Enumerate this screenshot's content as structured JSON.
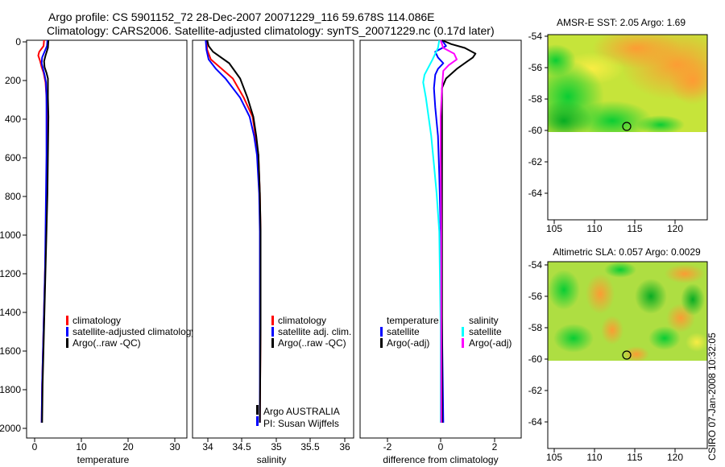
{
  "figure": {
    "title_line1": "Argo profile: CS 5901152_72 28-Dec-2007 20071229_116 59.678S 114.086E",
    "title_line2": "Climatology: CARS2006. Satellite-adjusted climatology: synTS_20071229.nc (0.17d later)",
    "credit": "CSIRO 07-Jan-2008 10:32:05",
    "float_info_1": "Argo AUSTRALIA",
    "float_info_2": "PI: Susan Wijffels"
  },
  "colors": {
    "climatology": "#ff0000",
    "satellite": "#0000ff",
    "argo": "#000000",
    "diff_temp_satellite": "#0000ff",
    "diff_temp_argo": "#000000",
    "diff_sal_satellite": "#00ffff",
    "diff_sal_argo": "#ff00ff",
    "map_marker": "#000000"
  },
  "chart_data": [
    {
      "type": "line",
      "id": "temperature",
      "xlabel": "temperature",
      "ylabel": "",
      "xlim": [
        -2,
        31
      ],
      "ylim": [
        2080,
        0
      ],
      "y_reversed": true,
      "xticks": [
        "0",
        "10",
        "20",
        "30"
      ],
      "yticks": [
        "0",
        "200",
        "400",
        "600",
        "800",
        "1000",
        "1200",
        "1400",
        "1600",
        "1800",
        "2000"
      ],
      "legend": [
        "climatology",
        "satellite-adjusted climatology",
        "Argo(..raw -QC)"
      ],
      "legend_position": "lower-right",
      "series": [
        {
          "name": "climatology",
          "color_key": "climatology",
          "points": [
            [
              1.6,
              0
            ],
            [
              1.5,
              30
            ],
            [
              0.6,
              60
            ],
            [
              0.4,
              80
            ],
            [
              0.8,
              110
            ],
            [
              1.1,
              140
            ],
            [
              1.5,
              170
            ],
            [
              1.9,
              220
            ],
            [
              2.1,
              300
            ],
            [
              2.2,
              400
            ],
            [
              2.2,
              600
            ],
            [
              2.1,
              800
            ],
            [
              2.0,
              1000
            ],
            [
              1.8,
              1200
            ],
            [
              1.6,
              1400
            ],
            [
              1.4,
              1600
            ],
            [
              1.2,
              1800
            ],
            [
              1.1,
              2000
            ]
          ]
        },
        {
          "name": "satellite-adjusted climatology",
          "color_key": "satellite",
          "points": [
            [
              2.3,
              0
            ],
            [
              2.2,
              30
            ],
            [
              1.7,
              60
            ],
            [
              1.2,
              90
            ],
            [
              1.1,
              120
            ],
            [
              1.4,
              150
            ],
            [
              1.7,
              180
            ],
            [
              2.0,
              220
            ],
            [
              2.1,
              300
            ],
            [
              2.1,
              400
            ],
            [
              2.1,
              600
            ],
            [
              2.0,
              800
            ],
            [
              1.9,
              1000
            ],
            [
              1.8,
              1200
            ],
            [
              1.6,
              1400
            ],
            [
              1.4,
              1600
            ],
            [
              1.2,
              1800
            ],
            [
              1.1,
              2000
            ]
          ]
        },
        {
          "name": "Argo(..raw -QC)",
          "color_key": "argo",
          "points": [
            [
              2.5,
              0
            ],
            [
              2.4,
              40
            ],
            [
              1.9,
              80
            ],
            [
              1.6,
              110
            ],
            [
              1.7,
              140
            ],
            [
              2.1,
              170
            ],
            [
              2.4,
              200
            ],
            [
              2.4,
              300
            ],
            [
              2.5,
              400
            ],
            [
              2.4,
              600
            ],
            [
              2.3,
              800
            ],
            [
              2.1,
              1000
            ],
            [
              1.9,
              1200
            ],
            [
              1.7,
              1400
            ],
            [
              1.5,
              1600
            ],
            [
              1.3,
              1800
            ],
            [
              1.2,
              2000
            ]
          ]
        }
      ]
    },
    {
      "type": "line",
      "id": "salinity",
      "xlabel": "salinity",
      "ylabel": "",
      "xlim": [
        33.8,
        36.0
      ],
      "ylim": [
        2080,
        0
      ],
      "y_reversed": true,
      "xticks": [
        "34",
        "34.5",
        "35",
        "35.5",
        "36"
      ],
      "legend": [
        "climatology",
        "satellite adj. clim.",
        "Argo(..raw -QC)"
      ],
      "legend_position": "lower-right",
      "series": [
        {
          "name": "climatology",
          "color_key": "climatology",
          "points": [
            [
              33.99,
              0
            ],
            [
              34.0,
              50
            ],
            [
              34.05,
              100
            ],
            [
              34.2,
              150
            ],
            [
              34.35,
              200
            ],
            [
              34.5,
              300
            ],
            [
              34.62,
              400
            ],
            [
              34.66,
              500
            ],
            [
              34.7,
              600
            ],
            [
              34.72,
              800
            ],
            [
              34.73,
              1000
            ],
            [
              34.73,
              1500
            ],
            [
              34.72,
              2000
            ]
          ]
        },
        {
          "name": "satellite adj. clim.",
          "color_key": "satellite",
          "points": [
            [
              33.98,
              0
            ],
            [
              33.99,
              50
            ],
            [
              34.02,
              100
            ],
            [
              34.12,
              150
            ],
            [
              34.25,
              200
            ],
            [
              34.45,
              300
            ],
            [
              34.58,
              400
            ],
            [
              34.64,
              500
            ],
            [
              34.68,
              600
            ],
            [
              34.71,
              800
            ],
            [
              34.72,
              1000
            ],
            [
              34.72,
              1500
            ],
            [
              34.72,
              2000
            ]
          ]
        },
        {
          "name": "Argo(..raw -QC)",
          "color_key": "argo",
          "points": [
            [
              34.0,
              0
            ],
            [
              34.02,
              30
            ],
            [
              34.08,
              60
            ],
            [
              34.3,
              120
            ],
            [
              34.45,
              200
            ],
            [
              34.55,
              300
            ],
            [
              34.63,
              400
            ],
            [
              34.67,
              500
            ],
            [
              34.7,
              600
            ],
            [
              34.72,
              800
            ],
            [
              34.73,
              1000
            ],
            [
              34.73,
              1500
            ],
            [
              34.72,
              2000
            ]
          ]
        }
      ]
    },
    {
      "type": "line",
      "id": "difference",
      "xlabel": "difference from climatology",
      "ylabel": "",
      "xlim": [
        -3,
        3
      ],
      "ylim": [
        2080,
        0
      ],
      "y_reversed": true,
      "xticks": [
        "-2",
        "0",
        "2"
      ],
      "legend_groups": [
        {
          "heading": "temperature",
          "entries": [
            "satellite",
            "Argo(-adj)"
          ]
        },
        {
          "heading": "salinity",
          "entries": [
            "satellite",
            "Argo(-adj)"
          ]
        }
      ],
      "legend_position": "lower-center",
      "series": [
        {
          "name": "temperature satellite",
          "color_key": "diff_temp_satellite",
          "points": [
            [
              0.05,
              0
            ],
            [
              0.2,
              30
            ],
            [
              -0.2,
              60
            ],
            [
              -0.1,
              90
            ],
            [
              0.1,
              120
            ],
            [
              -0.1,
              150
            ],
            [
              -0.2,
              180
            ],
            [
              -0.25,
              250
            ],
            [
              -0.2,
              350
            ],
            [
              -0.1,
              500
            ],
            [
              -0.05,
              700
            ],
            [
              0.0,
              1000
            ],
            [
              0.05,
              1500
            ],
            [
              0.1,
              2000
            ]
          ]
        },
        {
          "name": "temperature Argo(-adj)",
          "color_key": "diff_temp_argo",
          "points": [
            [
              0.05,
              0
            ],
            [
              0.4,
              20
            ],
            [
              0.9,
              40
            ],
            [
              1.3,
              70
            ],
            [
              1.2,
              90
            ],
            [
              1.0,
              110
            ],
            [
              0.6,
              150
            ],
            [
              0.2,
              200
            ],
            [
              0.05,
              250
            ],
            [
              0.05,
              400
            ],
            [
              0.05,
              600
            ],
            [
              0.05,
              1000
            ],
            [
              0.05,
              1500
            ],
            [
              0.05,
              2000
            ]
          ]
        },
        {
          "name": "salinity satellite",
          "color_key": "diff_sal_satellite",
          "points": [
            [
              -0.05,
              0
            ],
            [
              -0.1,
              40
            ],
            [
              -0.3,
              100
            ],
            [
              -0.6,
              180
            ],
            [
              -0.65,
              220
            ],
            [
              -0.55,
              300
            ],
            [
              -0.45,
              400
            ],
            [
              -0.35,
              500
            ],
            [
              -0.25,
              650
            ],
            [
              -0.15,
              800
            ],
            [
              -0.05,
              1000
            ],
            [
              0.0,
              1500
            ],
            [
              0.0,
              2000
            ]
          ]
        },
        {
          "name": "salinity Argo(-adj)",
          "color_key": "diff_sal_argo",
          "points": [
            [
              0.0,
              0
            ],
            [
              0.1,
              40
            ],
            [
              0.5,
              70
            ],
            [
              0.6,
              100
            ],
            [
              0.3,
              130
            ],
            [
              0.1,
              160
            ],
            [
              0.05,
              250
            ],
            [
              0.0,
              400
            ],
            [
              0.0,
              600
            ],
            [
              0.02,
              1000
            ],
            [
              0.02,
              2000
            ]
          ]
        }
      ]
    },
    {
      "type": "heatmap",
      "id": "sst_map",
      "title": "AMSR-E SST: 2.05 Argo: 1.69",
      "xlim": [
        104,
        124
      ],
      "ylim": [
        -65.7,
        -53.5
      ],
      "xticks": [
        "105",
        "110",
        "115",
        "120"
      ],
      "yticks": [
        "-54",
        "-56",
        "-58",
        "-60",
        "-62",
        "-64"
      ],
      "data_extent_lat": [
        -60.1,
        -53.5
      ],
      "marker": {
        "lon": 114.1,
        "lat": -59.7
      }
    },
    {
      "type": "heatmap",
      "id": "sla_map",
      "title": "Altimetric SLA: 0.057 Argo: 0.0029",
      "xlim": [
        104,
        124
      ],
      "ylim": [
        -65.7,
        -53.5
      ],
      "xticks": [
        "105",
        "110",
        "115",
        "120"
      ],
      "yticks": [
        "-54",
        "-56",
        "-58",
        "-60",
        "-62",
        "-64"
      ],
      "data_extent_lat": [
        -60.1,
        -53.5
      ],
      "marker": {
        "lon": 114.1,
        "lat": -59.7
      }
    }
  ]
}
